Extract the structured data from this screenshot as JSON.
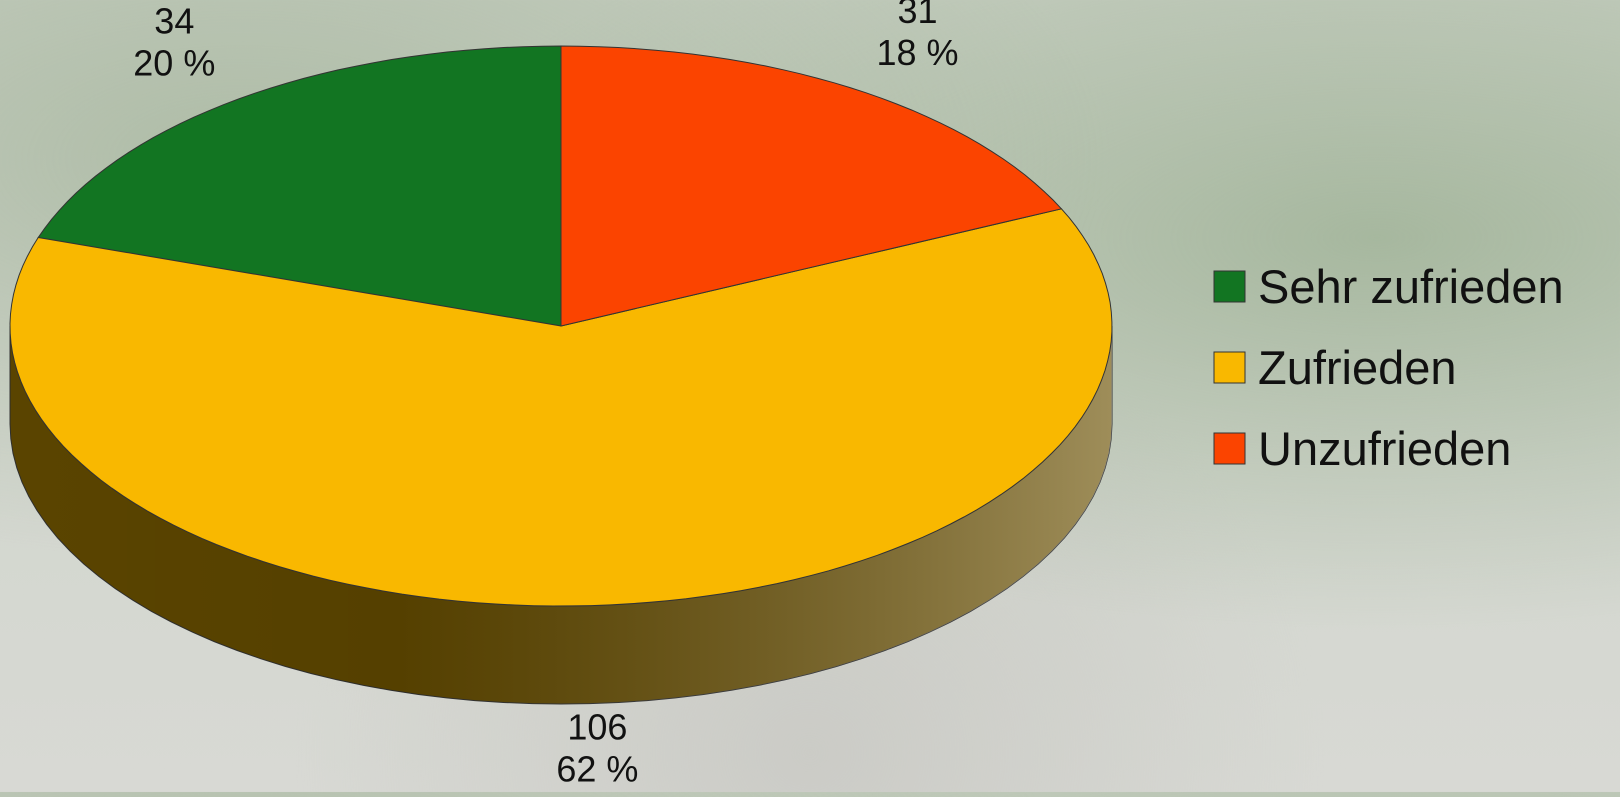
{
  "chart_data": {
    "type": "pie3d",
    "categories": [
      "Sehr zufrieden",
      "Zufrieden",
      "Unzufrieden"
    ],
    "values": [
      34,
      106,
      31
    ],
    "percentages": [
      20,
      62,
      18
    ],
    "percentage_labels": [
      "20 %",
      "62 %",
      "18 %"
    ],
    "colors": [
      "#127522",
      "#f9b800",
      "#fb4400"
    ],
    "side_colors": [
      "#0b4a15",
      "#6a5000",
      "#9a2a00"
    ],
    "legend": "right"
  }
}
